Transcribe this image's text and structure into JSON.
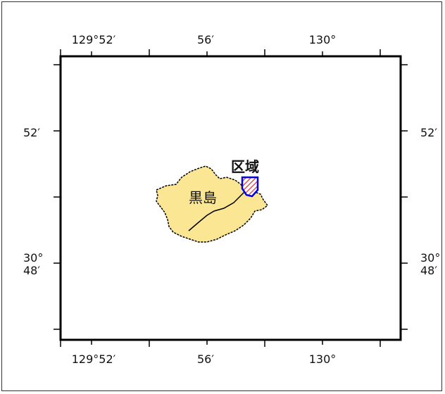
{
  "map": {
    "top_ticks": [
      "129°52′",
      "56′",
      "130°"
    ],
    "bottom_ticks": [
      "129°52′",
      "56′",
      "130°"
    ],
    "left_ticks": [
      "52′",
      "30°",
      "48′"
    ],
    "right_ticks": [
      "52′",
      "30°",
      "48′"
    ],
    "island_label": "黒島",
    "area_label": "区域",
    "colors": {
      "land_fill": "#fbe793",
      "frame": "#000000",
      "area_stroke": "#0000ee",
      "area_hatch": "#e0303a"
    }
  }
}
